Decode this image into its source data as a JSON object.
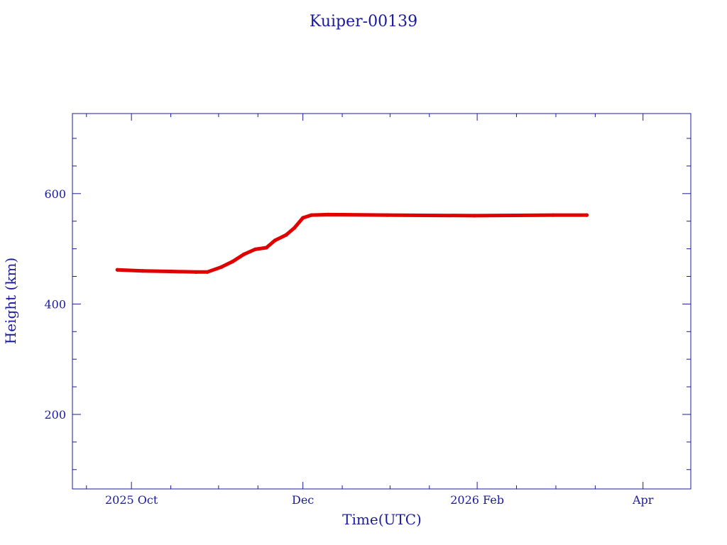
{
  "chart_data": {
    "type": "line",
    "title": "Kuiper-00139",
    "xlabel": "Time(UTC)",
    "ylabel": "Height (km)",
    "xlim": [
      "2025-09-10",
      "2026-04-18"
    ],
    "ylim": [
      65,
      745
    ],
    "x_ticks": [
      {
        "date": "2025-10-01",
        "label": "2025 Oct"
      },
      {
        "date": "2025-12-01",
        "label": "Dec"
      },
      {
        "date": "2026-02-01",
        "label": "2026 Feb"
      },
      {
        "date": "2026-04-01",
        "label": "Apr"
      }
    ],
    "x_minor_ticks": [
      "2025-09-15",
      "2025-10-15",
      "2025-11-01",
      "2025-11-15",
      "2025-12-15",
      "2026-01-01",
      "2026-01-15",
      "2026-02-15",
      "2026-03-01",
      "2026-03-15"
    ],
    "y_ticks": [
      200,
      400,
      600
    ],
    "y_minor_step": 50,
    "grid": false,
    "colors": {
      "axes": "#1a1a9c",
      "series": "#e00000"
    },
    "series": [
      {
        "points": [
          [
            "2025-09-26",
            462
          ],
          [
            "2025-10-05",
            460
          ],
          [
            "2025-10-15",
            459
          ],
          [
            "2025-10-24",
            458
          ],
          [
            "2025-10-28",
            458
          ],
          [
            "2025-11-02",
            467
          ],
          [
            "2025-11-06",
            477
          ],
          [
            "2025-11-10",
            490
          ],
          [
            "2025-11-14",
            499
          ],
          [
            "2025-11-18",
            502
          ],
          [
            "2025-11-21",
            515
          ],
          [
            "2025-11-25",
            525
          ],
          [
            "2025-11-28",
            538
          ],
          [
            "2025-12-01",
            556
          ],
          [
            "2025-12-04",
            561
          ],
          [
            "2025-12-10",
            562
          ],
          [
            "2025-12-31",
            561
          ],
          [
            "2026-01-31",
            560
          ],
          [
            "2026-02-28",
            561
          ],
          [
            "2026-03-12",
            561
          ]
        ]
      }
    ]
  }
}
